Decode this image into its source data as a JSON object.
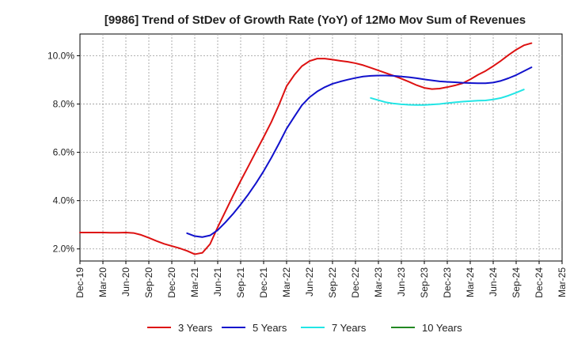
{
  "chart_data": {
    "type": "line",
    "title": "[9986]  Trend of StDev of Growth Rate (YoY) of 12Mo Mov Sum of Revenues",
    "xlabel": "",
    "ylabel": "",
    "x_ticks": [
      "Dec-19",
      "Mar-20",
      "Jun-20",
      "Sep-20",
      "Dec-20",
      "Mar-21",
      "Jun-21",
      "Sep-21",
      "Dec-21",
      "Mar-22",
      "Jun-22",
      "Sep-22",
      "Dec-22",
      "Mar-23",
      "Jun-23",
      "Sep-23",
      "Dec-23",
      "Mar-24",
      "Jun-24",
      "Sep-24",
      "Dec-24",
      "Mar-25"
    ],
    "y_ticks": [
      2.0,
      4.0,
      6.0,
      8.0,
      10.0
    ],
    "y_tick_labels": [
      "2.0%",
      "4.0%",
      "6.0%",
      "8.0%",
      "10.0%"
    ],
    "ylim": [
      1.5,
      10.9
    ],
    "grid": true,
    "legend_position": "bottom",
    "series": [
      {
        "name": "3 Years",
        "color": "#dd1111",
        "start_index": 0,
        "values": [
          2.68,
          2.68,
          2.68,
          2.68,
          2.67,
          2.67,
          2.68,
          2.66,
          2.58,
          2.46,
          2.33,
          2.21,
          2.12,
          2.03,
          1.92,
          1.78,
          1.84,
          2.2,
          2.9,
          3.55,
          4.2,
          4.82,
          5.42,
          6.03,
          6.63,
          7.25,
          7.96,
          8.74,
          9.2,
          9.57,
          9.78,
          9.88,
          9.88,
          9.84,
          9.79,
          9.75,
          9.69,
          9.61,
          9.5,
          9.39,
          9.28,
          9.17,
          9.05,
          8.92,
          8.78,
          8.67,
          8.62,
          8.64,
          8.7,
          8.77,
          8.86,
          9.02,
          9.21,
          9.37,
          9.57,
          9.79,
          10.03,
          10.25,
          10.43,
          10.52
        ]
      },
      {
        "name": "5 Years",
        "color": "#1111cc",
        "start_index": 14,
        "values": [
          2.65,
          2.53,
          2.49,
          2.56,
          2.78,
          3.1,
          3.45,
          3.84,
          4.26,
          4.72,
          5.22,
          5.77,
          6.36,
          6.98,
          7.47,
          7.95,
          8.28,
          8.52,
          8.7,
          8.84,
          8.93,
          9.01,
          9.08,
          9.14,
          9.17,
          9.18,
          9.18,
          9.17,
          9.14,
          9.11,
          9.07,
          9.02,
          8.98,
          8.94,
          8.92,
          8.9,
          8.88,
          8.87,
          8.86,
          8.86,
          8.89,
          8.96,
          9.07,
          9.2,
          9.36,
          9.52
        ]
      },
      {
        "name": "7 Years",
        "color": "#22e5e5",
        "start_index": 38,
        "values": [
          8.25,
          8.16,
          8.07,
          8.02,
          7.99,
          7.97,
          7.96,
          7.96,
          7.98,
          8.0,
          8.04,
          8.07,
          8.1,
          8.12,
          8.14,
          8.15,
          8.19,
          8.25,
          8.35,
          8.47,
          8.6
        ]
      },
      {
        "name": "10 Years",
        "color": "#228822",
        "start_index": 0,
        "values": []
      }
    ]
  }
}
